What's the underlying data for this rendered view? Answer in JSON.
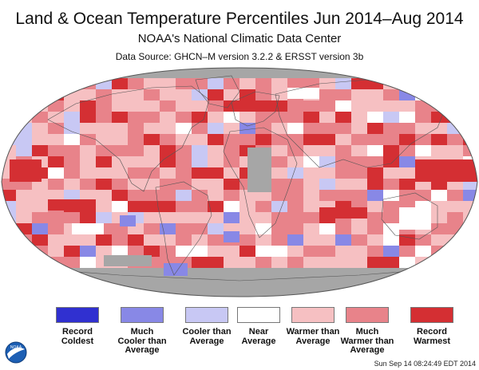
{
  "title": "Land & Ocean Temperature Percentiles Jun 2014–Aug 2014",
  "subtitle": "NOAA's National Climatic Data Center",
  "source": "Data Source: GHCN–M version 3.2.2 & ERSST version 3b",
  "timestamp": "Sun Sep 14 08:24:49 EDT 2014",
  "colors": {
    "record_coldest": "#3030d0",
    "much_cooler": "#8888e6",
    "cooler": "#c8c8f4",
    "near": "#ffffff",
    "warmer": "#f6c0c2",
    "much_warmer": "#e8838a",
    "record_warmest": "#d42f33",
    "missing": "#a6a6a6",
    "land_outline": "#555555"
  },
  "legend": [
    {
      "label_lines": [
        "Record",
        "Coldest"
      ],
      "color": "#3030d0"
    },
    {
      "label_lines": [
        "Much",
        "Cooler than",
        "Average"
      ],
      "color": "#8888e6"
    },
    {
      "label_lines": [
        "Cooler than",
        "Average"
      ],
      "color": "#c8c8f4"
    },
    {
      "label_lines": [
        "Near",
        "Average"
      ],
      "color": "#ffffff"
    },
    {
      "label_lines": [
        "Warmer than",
        "Average"
      ],
      "color": "#f6c0c2"
    },
    {
      "label_lines": [
        "Much",
        "Warmer than",
        "Average"
      ],
      "color": "#e8838a"
    },
    {
      "label_lines": [
        "Record",
        "Warmest"
      ],
      "color": "#d42f33"
    }
  ],
  "logo": {
    "icon": "noaa-logo",
    "text": "NOAA"
  }
}
